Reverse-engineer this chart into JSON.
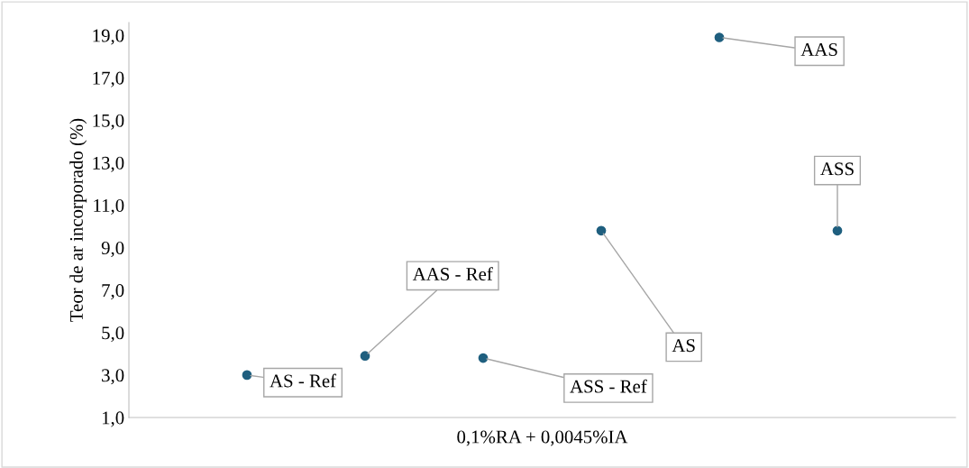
{
  "chart_data": {
    "type": "scatter",
    "xlabel": "0,1%RA + 0,0045%IA",
    "ylabel": "Teor de ar incorporado (%)",
    "categories": [
      null,
      null,
      null,
      null,
      null,
      null
    ],
    "series": [
      {
        "color": "#1f5f7f",
        "values": [
          3.0,
          3.9,
          3.8,
          9.8,
          18.9,
          9.8
        ]
      }
    ],
    "value_labels": [
      "AS - Ref",
      "AAS - Ref",
      "ASS - Ref",
      "AS",
      "AAS",
      "ASS"
    ],
    "ylim": [
      1,
      19.6
    ],
    "yticks": [
      {
        "value": 1,
        "label": "1,0"
      },
      {
        "value": 3,
        "label": "3,0"
      },
      {
        "value": 5,
        "label": "5,0"
      },
      {
        "value": 7,
        "label": "7,0"
      },
      {
        "value": 9,
        "label": "9,0"
      },
      {
        "value": 11,
        "label": "11,0"
      },
      {
        "value": 13,
        "label": "13,0"
      },
      {
        "value": 15,
        "label": "15,0"
      },
      {
        "value": 17,
        "label": "17,0"
      },
      {
        "value": 19,
        "label": "19,0"
      }
    ],
    "tick_labels": "y",
    "grid": false,
    "legend": false,
    "marker": "circle"
  }
}
